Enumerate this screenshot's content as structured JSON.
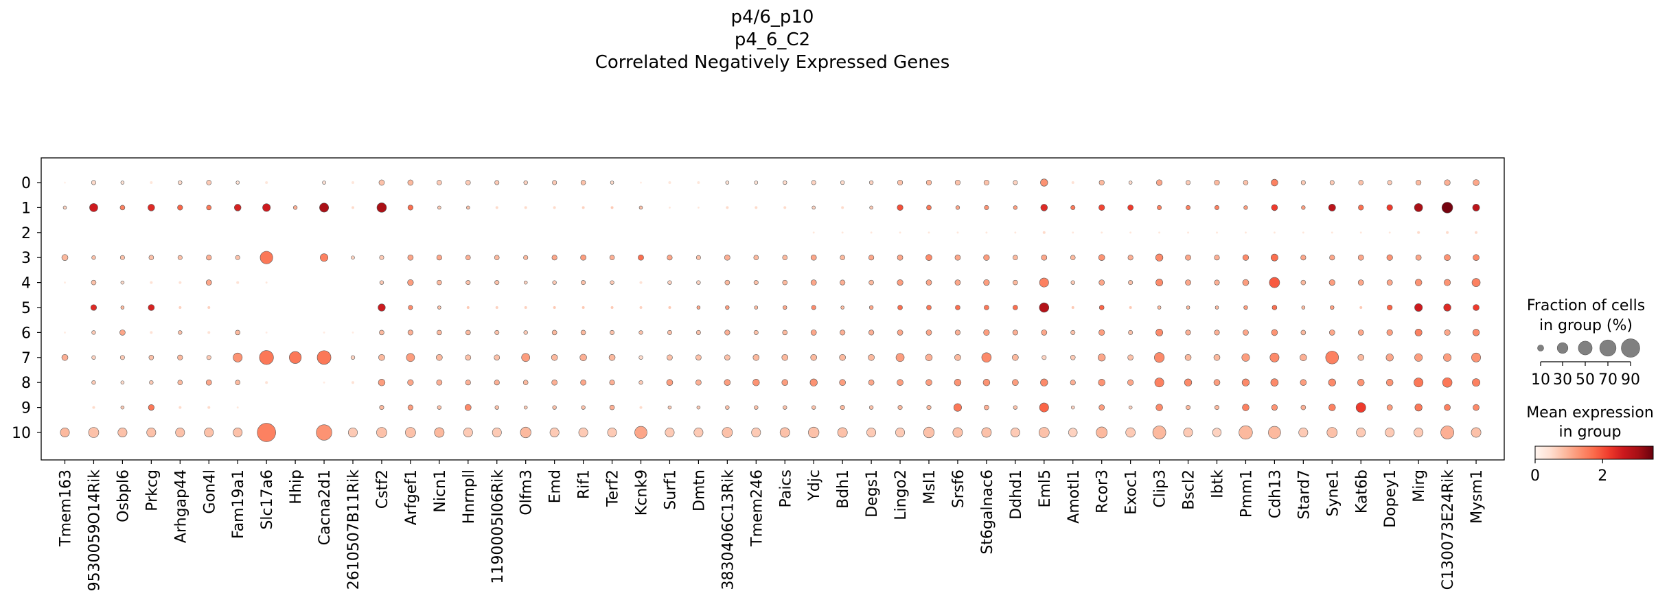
{
  "chart_data": {
    "type": "dotplot",
    "title_lines": [
      "p4/6_p10",
      "p4_6_C2",
      "Correlated Negatively Expressed Genes"
    ],
    "genes": [
      "Tmem163",
      "9530059O14Rik",
      "Osbpl6",
      "Prkcg",
      "Arhgap44",
      "Gon4l",
      "Fam19a1",
      "Slc17a6",
      "Hhip",
      "Cacna2d1",
      "2610507B11Rik",
      "Cstf2",
      "Arfgef1",
      "Nicn1",
      "Hnrnpll",
      "1190005I06Rik",
      "Olfm3",
      "Emd",
      "Rif1",
      "Terf2",
      "Kcnk9",
      "Surf1",
      "Dmtn",
      "3830406C13Rik",
      "Tmem246",
      "Paics",
      "Ydjc",
      "Bdh1",
      "Degs1",
      "Lingo2",
      "Msl1",
      "Srsf6",
      "St6galnac6",
      "Ddhd1",
      "Eml5",
      "Amotl1",
      "Rcor3",
      "Exoc1",
      "Clip3",
      "Bscl2",
      "Ibtk",
      "Pmm1",
      "Cdh13",
      "Stard7",
      "Syne1",
      "Kat6b",
      "Dopey1",
      "Mirg",
      "C130073E24Rik",
      "Mysm1"
    ],
    "groups": [
      "0",
      "1",
      "2",
      "3",
      "4",
      "5",
      "6",
      "7",
      "8",
      "9",
      "10"
    ],
    "fraction_percent": [
      [
        1,
        5,
        3,
        2,
        4,
        6,
        3,
        2,
        0,
        3,
        2,
        8,
        8,
        6,
        6,
        5,
        4,
        5,
        6,
        3,
        1,
        2,
        2,
        3,
        3,
        4,
        5,
        4,
        4,
        7,
        7,
        7,
        7,
        5,
        14,
        2,
        7,
        3,
        9,
        5,
        7,
        6,
        12,
        5,
        5,
        6,
        5,
        7,
        9,
        10
      ],
      [
        3,
        18,
        6,
        12,
        7,
        6,
        12,
        16,
        4,
        22,
        2,
        24,
        7,
        3,
        3,
        2,
        2,
        2,
        2,
        2,
        3,
        1,
        1,
        2,
        2,
        2,
        3,
        2,
        3,
        9,
        6,
        4,
        5,
        4,
        12,
        5,
        9,
        8,
        5,
        5,
        5,
        4,
        10,
        4,
        13,
        7,
        9,
        18,
        31,
        13
      ],
      [
        0,
        0,
        0,
        0,
        0,
        0,
        0,
        0,
        0,
        0,
        0,
        0,
        0,
        0,
        0,
        0,
        0,
        0,
        0,
        0,
        0,
        0,
        0,
        0,
        0,
        0,
        1,
        1,
        1,
        1,
        1,
        1,
        1,
        1,
        2,
        1,
        1,
        1,
        1,
        1,
        1,
        1,
        1,
        1,
        1,
        1,
        1,
        2,
        2,
        2
      ],
      [
        10,
        4,
        5,
        6,
        5,
        7,
        5,
        42,
        0,
        16,
        3,
        5,
        8,
        7,
        6,
        6,
        5,
        7,
        8,
        6,
        8,
        7,
        5,
        8,
        6,
        6,
        8,
        6,
        7,
        8,
        10,
        8,
        9,
        6,
        8,
        6,
        10,
        7,
        14,
        8,
        7,
        9,
        13,
        7,
        7,
        8,
        9,
        8,
        10,
        10
      ],
      [
        1,
        6,
        3,
        2,
        2,
        8,
        2,
        1,
        0,
        0,
        0,
        4,
        9,
        6,
        5,
        5,
        3,
        4,
        5,
        4,
        2,
        4,
        4,
        6,
        5,
        6,
        8,
        7,
        6,
        9,
        8,
        8,
        9,
        6,
        22,
        4,
        8,
        5,
        13,
        8,
        7,
        10,
        28,
        6,
        9,
        8,
        8,
        12,
        11,
        18
      ],
      [
        0,
        9,
        3,
        10,
        2,
        2,
        0,
        0,
        0,
        0,
        0,
        14,
        5,
        3,
        2,
        2,
        2,
        2,
        2,
        2,
        2,
        2,
        3,
        4,
        3,
        4,
        5,
        3,
        4,
        6,
        6,
        6,
        6,
        6,
        24,
        2,
        6,
        2,
        3,
        3,
        3,
        4,
        6,
        3,
        4,
        2,
        7,
        16,
        14,
        10
      ],
      [
        1,
        4,
        8,
        2,
        4,
        2,
        6,
        1,
        0,
        1,
        1,
        6,
        7,
        6,
        6,
        5,
        4,
        6,
        6,
        5,
        4,
        5,
        5,
        7,
        5,
        6,
        8,
        7,
        7,
        8,
        8,
        7,
        9,
        7,
        8,
        5,
        9,
        5,
        13,
        7,
        7,
        8,
        10,
        6,
        8,
        8,
        9,
        13,
        9,
        12
      ],
      [
        10,
        4,
        5,
        6,
        7,
        5,
        22,
        52,
        38,
        50,
        4,
        10,
        18,
        10,
        8,
        8,
        18,
        10,
        12,
        10,
        4,
        8,
        8,
        8,
        10,
        10,
        10,
        10,
        10,
        18,
        12,
        10,
        24,
        10,
        5,
        6,
        14,
        8,
        26,
        10,
        10,
        16,
        22,
        12,
        44,
        10,
        14,
        16,
        16,
        22
      ],
      [
        0,
        4,
        3,
        4,
        6,
        8,
        6,
        2,
        0,
        1,
        2,
        12,
        9,
        8,
        7,
        7,
        6,
        8,
        8,
        7,
        4,
        10,
        8,
        10,
        12,
        10,
        14,
        10,
        8,
        10,
        10,
        12,
        12,
        10,
        14,
        7,
        12,
        9,
        22,
        14,
        10,
        14,
        15,
        10,
        14,
        12,
        12,
        22,
        24,
        16
      ],
      [
        0,
        2,
        3,
        9,
        2,
        2,
        1,
        0,
        0,
        0,
        0,
        5,
        7,
        4,
        10,
        4,
        3,
        4,
        4,
        6,
        2,
        3,
        3,
        4,
        4,
        4,
        4,
        5,
        4,
        5,
        5,
        16,
        6,
        4,
        22,
        3,
        8,
        3,
        12,
        5,
        5,
        12,
        9,
        6,
        12,
        25,
        8,
        14,
        10,
        10
      ],
      [
        22,
        28,
        22,
        22,
        22,
        22,
        22,
        90,
        0,
        64,
        22,
        28,
        28,
        25,
        22,
        22,
        30,
        22,
        22,
        22,
        40,
        22,
        22,
        28,
        22,
        25,
        30,
        25,
        22,
        22,
        30,
        25,
        25,
        22,
        28,
        20,
        32,
        24,
        45,
        22,
        20,
        48,
        40,
        22,
        28,
        22,
        22,
        22,
        45,
        25
      ]
    ],
    "mean_expression": [
      [
        0.1,
        0.5,
        0.4,
        0.3,
        0.5,
        0.7,
        0.4,
        0.3,
        0,
        0.4,
        0.3,
        0.8,
        0.9,
        0.7,
        0.7,
        0.7,
        0.6,
        0.7,
        0.8,
        0.5,
        0.2,
        0.3,
        0.3,
        0.4,
        0.4,
        0.5,
        0.6,
        0.5,
        0.6,
        0.8,
        0.9,
        0.8,
        0.8,
        0.6,
        1.3,
        0.4,
        0.9,
        0.5,
        1.1,
        0.7,
        0.9,
        0.8,
        1.5,
        0.7,
        0.7,
        0.8,
        0.7,
        0.9,
        1,
        1.1
      ],
      [
        0.6,
        2.6,
        1.5,
        2.4,
        1.8,
        1.6,
        2.5,
        2.6,
        1,
        3,
        0.5,
        3,
        1.7,
        0.7,
        0.8,
        0.5,
        0.5,
        0.5,
        0.6,
        0.7,
        0.8,
        0.3,
        0.3,
        0.5,
        0.5,
        0.5,
        0.6,
        0.5,
        0.7,
        2,
        1.6,
        1.1,
        1.3,
        1.2,
        2.4,
        1.6,
        2.1,
        2.2,
        1.5,
        1.5,
        1.5,
        1.2,
        2.2,
        1.2,
        2.8,
        1.7,
        2.2,
        3,
        3.4,
        2.8
      ],
      [
        0,
        0,
        0,
        0,
        0,
        0,
        0,
        0,
        0,
        0,
        0,
        0,
        0,
        0,
        0,
        0,
        0,
        0,
        0,
        0,
        0,
        0,
        0,
        0,
        0,
        0,
        0.3,
        0.3,
        0.3,
        0.3,
        0.3,
        0.3,
        0.3,
        0.3,
        0.5,
        0.3,
        0.3,
        0.3,
        0.3,
        0.3,
        0.3,
        0.3,
        0.3,
        0.3,
        0.3,
        0.3,
        0.3,
        0.5,
        0.5,
        0.5
      ],
      [
        0.9,
        0.8,
        0.8,
        0.8,
        0.8,
        1,
        0.8,
        1.6,
        0,
        1.5,
        0.6,
        0.7,
        1.1,
        1.1,
        1,
        0.9,
        0.9,
        1.1,
        1.2,
        1,
        1.7,
        1.1,
        0.8,
        1,
        0.9,
        0.9,
        1.1,
        0.9,
        1.1,
        1.1,
        1.4,
        1.1,
        1.2,
        0.9,
        1.1,
        0.9,
        1.3,
        1,
        1.4,
        1.1,
        1,
        1.4,
        1.7,
        1.1,
        1.1,
        1.1,
        1.3,
        1.1,
        1.3,
        1.4
      ],
      [
        0.2,
        0.8,
        0.5,
        0.4,
        0.4,
        1.1,
        0.4,
        0.3,
        0,
        0,
        0,
        0.7,
        1.2,
        0.9,
        0.8,
        0.8,
        0.6,
        0.7,
        0.8,
        0.7,
        0.4,
        0.6,
        0.6,
        0.9,
        0.8,
        0.9,
        1.1,
        1,
        0.9,
        1.2,
        1.1,
        1.1,
        1.2,
        0.9,
        1.5,
        0.7,
        1.1,
        0.8,
        1.4,
        1.1,
        1,
        1.2,
        1.9,
        0.9,
        1.2,
        1.1,
        1.1,
        1.3,
        1.3,
        1.5
      ],
      [
        0,
        2.4,
        0.9,
        2.5,
        0.6,
        0.6,
        0,
        0,
        0,
        0,
        0,
        2.6,
        1.4,
        0.8,
        0.7,
        0.6,
        0.6,
        0.7,
        0.7,
        0.7,
        0.6,
        0.7,
        1.1,
        1.2,
        0.9,
        1.1,
        1.4,
        0.9,
        1.1,
        1.7,
        1.6,
        1.7,
        1.6,
        1.7,
        2.9,
        0.7,
        1.8,
        0.7,
        0.9,
        0.9,
        0.9,
        1.2,
        1.7,
        0.9,
        1.2,
        0.7,
        1.8,
        2.6,
        2.4,
        2.2
      ],
      [
        0.2,
        0.7,
        1.1,
        0.4,
        0.8,
        0.4,
        0.9,
        0.2,
        0,
        0.2,
        0.2,
        0.9,
        1,
        0.9,
        0.9,
        0.8,
        0.7,
        0.9,
        0.9,
        0.8,
        0.8,
        0.8,
        0.8,
        1,
        0.8,
        0.9,
        1.1,
        1,
        1,
        1.1,
        1.1,
        1,
        1.2,
        1,
        1.1,
        0.8,
        1.2,
        0.8,
        1.4,
        1,
        1,
        1.1,
        1.3,
        0.9,
        1.1,
        1.1,
        1.2,
        1.5,
        1.1,
        1.4
      ],
      [
        1,
        0.6,
        0.7,
        0.8,
        0.9,
        0.7,
        1.3,
        1.6,
        1.6,
        1.6,
        0.6,
        0.9,
        1.2,
        0.9,
        0.8,
        0.8,
        1.2,
        0.9,
        1,
        0.9,
        0.5,
        0.8,
        0.8,
        0.8,
        0.9,
        0.9,
        0.9,
        0.9,
        0.9,
        1.2,
        1,
        0.9,
        1.4,
        0.9,
        0.6,
        0.7,
        1.1,
        0.8,
        1.4,
        0.9,
        0.9,
        1.2,
        1.4,
        1,
        1.5,
        0.9,
        1.1,
        1.2,
        1.2,
        1.3
      ],
      [
        0,
        0.7,
        0.5,
        0.7,
        0.9,
        1.1,
        0.9,
        0.4,
        0,
        0.2,
        0.4,
        1.2,
        1.1,
        1,
        1,
        1,
        0.9,
        1,
        1.1,
        1,
        0.7,
        1.2,
        1,
        1.2,
        1.3,
        1.2,
        1.3,
        1.2,
        1.1,
        1.2,
        1.2,
        1.3,
        1.3,
        1.2,
        1.4,
        1,
        1.3,
        1.1,
        1.5,
        1.4,
        1.2,
        1.4,
        1.4,
        1.2,
        1.4,
        1.3,
        1.3,
        1.6,
        1.6,
        1.5
      ],
      [
        0,
        0.5,
        0.7,
        1.6,
        0.5,
        0.5,
        0.3,
        0,
        0,
        0,
        0,
        0.9,
        1.2,
        0.8,
        1.4,
        0.8,
        0.7,
        0.8,
        0.8,
        1,
        0.5,
        0.7,
        0.7,
        0.8,
        0.8,
        0.8,
        0.8,
        0.9,
        0.8,
        0.9,
        0.9,
        1.6,
        1,
        0.8,
        1.8,
        0.6,
        1.2,
        0.6,
        1.4,
        0.9,
        0.9,
        1.5,
        1.3,
        1,
        1.5,
        2.2,
        1.2,
        1.6,
        1.5,
        1.4
      ],
      [
        0.9,
        0.8,
        0.8,
        0.8,
        0.8,
        0.8,
        0.8,
        1.5,
        0,
        1.3,
        0.7,
        0.8,
        0.8,
        0.9,
        0.7,
        0.7,
        0.9,
        0.7,
        0.7,
        0.7,
        1.1,
        0.7,
        0.7,
        0.8,
        0.7,
        0.8,
        0.8,
        0.8,
        0.7,
        0.7,
        0.8,
        0.8,
        0.8,
        0.7,
        0.8,
        0.6,
        0.9,
        0.7,
        0.9,
        0.7,
        0.6,
        0.9,
        0.9,
        0.7,
        0.8,
        0.7,
        0.7,
        0.7,
        1,
        0.8
      ]
    ],
    "size_legend": {
      "title_lines": [
        "Fraction of cells",
        "in group (%)"
      ],
      "values": [
        10,
        30,
        50,
        70,
        90
      ],
      "labels": [
        "10",
        "30",
        "50",
        "70",
        "90"
      ]
    },
    "color_legend": {
      "title_lines": [
        "Mean expression",
        "in group"
      ],
      "range": [
        0,
        3.5
      ],
      "tick_labels": [
        "0",
        "2"
      ],
      "tick_values": [
        0,
        2
      ],
      "colormap": "Reds"
    }
  }
}
